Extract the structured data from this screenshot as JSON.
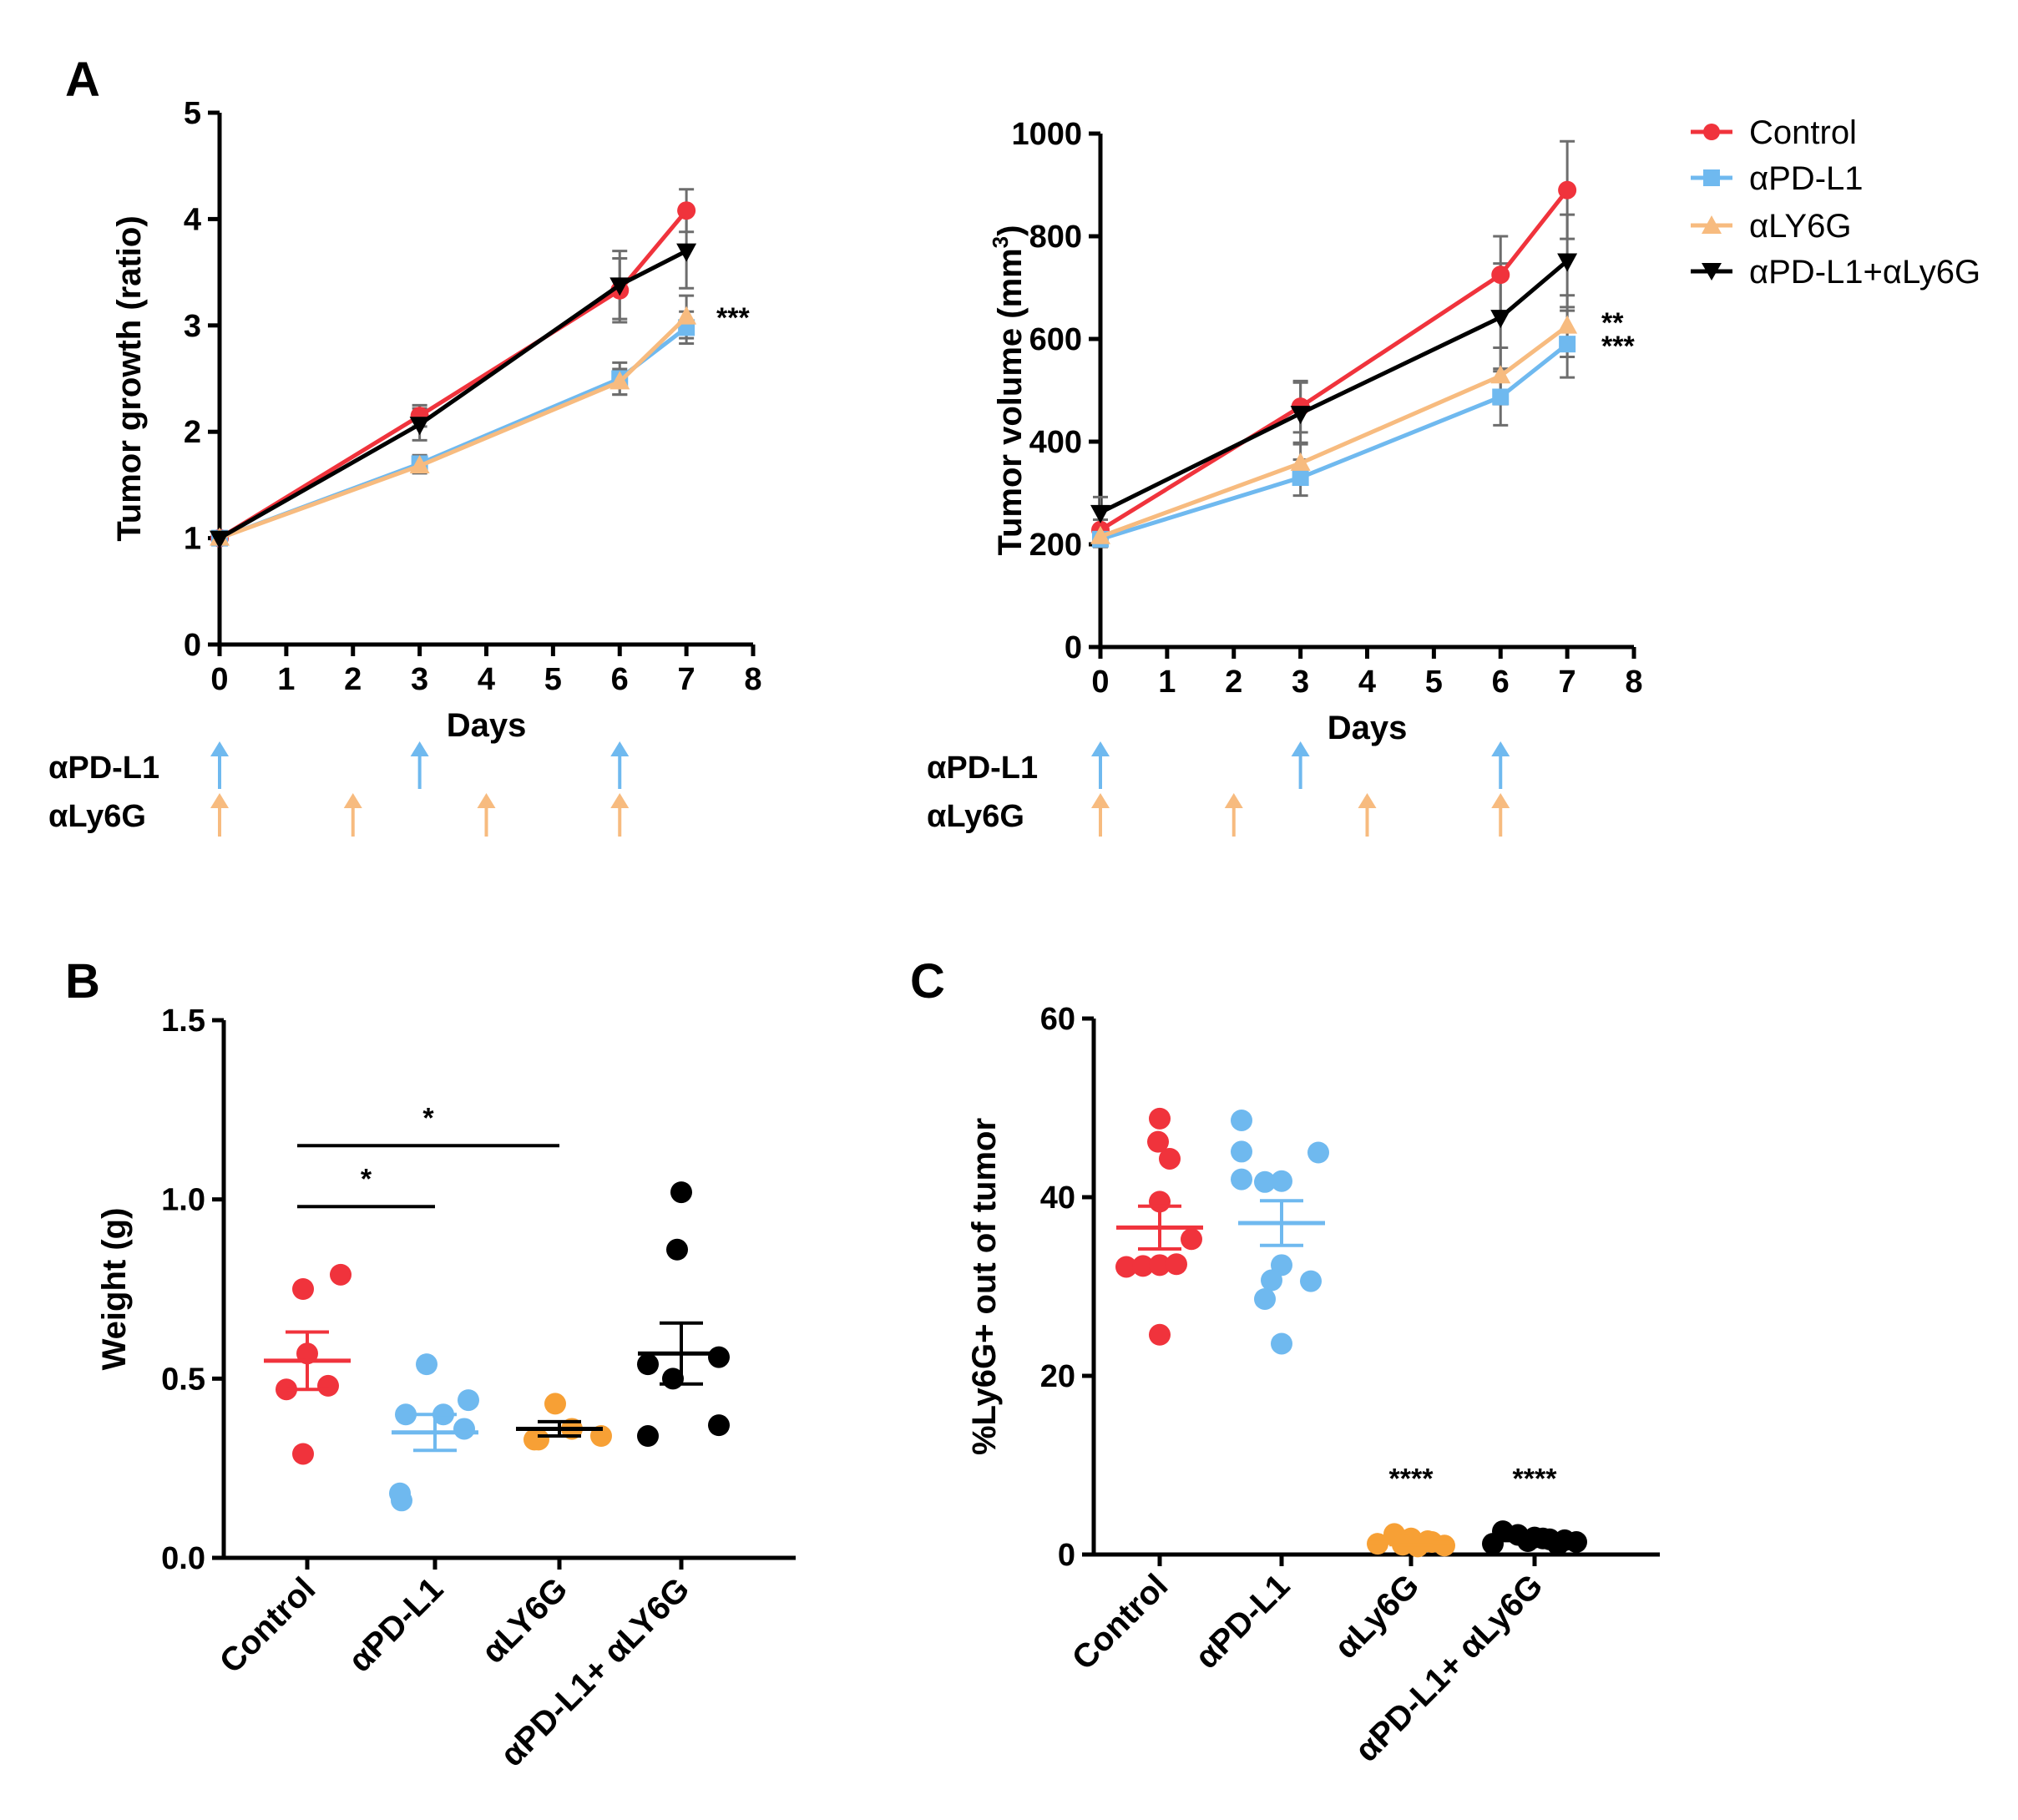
{
  "colors": {
    "control": "#f0333c",
    "apdl1": "#6fb9ef",
    "aly6g_line": "#f7bb7f",
    "aly6g_dot": "#f7a035",
    "combo": "#000000",
    "error": "#6d6d6d"
  },
  "panels": {
    "A": "A",
    "B": "B",
    "C": "C"
  },
  "legend": {
    "items": [
      "Control",
      "αPD-L1",
      "αLY6G",
      "αPD-L1+αLy6G"
    ]
  },
  "schedule": {
    "apdl1_label": "αPD-L1",
    "aly6g_label": "αLy6G",
    "apdl1_days": [
      0,
      3,
      6
    ],
    "aly6g_days": [
      0,
      2,
      4,
      6
    ]
  },
  "chart_data": [
    {
      "id": "A-left",
      "type": "line",
      "title": "",
      "xlabel": "Days",
      "ylabel": "Tumor growth (ratio)",
      "xlim": [
        0,
        8
      ],
      "ylim": [
        0,
        5
      ],
      "xticks": [
        "0",
        "1",
        "2",
        "3",
        "4",
        "5",
        "6",
        "7",
        "8"
      ],
      "yticks": [
        "0",
        "1",
        "2",
        "3",
        "4",
        "5"
      ],
      "x": [
        0,
        3,
        6,
        7
      ],
      "series": [
        {
          "name": "Control",
          "values": [
            1.0,
            2.15,
            3.33,
            4.08
          ],
          "err": [
            0.0,
            0.1,
            0.3,
            0.2
          ]
        },
        {
          "name": "αPD-L1",
          "values": [
            1.0,
            1.7,
            2.5,
            2.98
          ],
          "err": [
            0.0,
            0.08,
            0.15,
            0.15
          ]
        },
        {
          "name": "αLY6G",
          "values": [
            1.0,
            1.68,
            2.47,
            3.08
          ],
          "err": [
            0.0,
            0.07,
            0.12,
            0.2
          ]
        },
        {
          "name": "αPD-L1+αLy6G",
          "values": [
            1.0,
            2.07,
            3.38,
            3.7
          ],
          "err": [
            0.0,
            0.15,
            0.32,
            0.35
          ]
        }
      ],
      "annotations": [
        "***"
      ]
    },
    {
      "id": "A-right",
      "type": "line",
      "title": "",
      "xlabel": "Days",
      "ylabel": "Tumor volume (mm",
      "ylabel_sup": "3",
      "ylabel_end": ")",
      "xlim": [
        0,
        8
      ],
      "ylim": [
        0,
        1000
      ],
      "xticks": [
        "0",
        "1",
        "2",
        "3",
        "4",
        "5",
        "6",
        "7",
        "8"
      ],
      "yticks": [
        "0",
        "200",
        "400",
        "600",
        "800",
        "1000"
      ],
      "x": [
        0,
        3,
        6,
        7
      ],
      "series": [
        {
          "name": "Control",
          "values": [
            228,
            468,
            725,
            890
          ],
          "err": [
            20,
            50,
            75,
            95
          ]
        },
        {
          "name": "αPD-L1",
          "values": [
            210,
            330,
            487,
            590
          ],
          "err": [
            15,
            35,
            55,
            65
          ]
        },
        {
          "name": "αLY6G",
          "values": [
            215,
            358,
            528,
            625
          ],
          "err": [
            15,
            40,
            55,
            60
          ]
        },
        {
          "name": "αPD-L1+αLy6G",
          "values": [
            262,
            455,
            642,
            752
          ],
          "err": [
            30,
            60,
            105,
            90
          ]
        }
      ],
      "annotations": [
        "**",
        "***"
      ]
    },
    {
      "id": "B",
      "type": "scatter",
      "title": "",
      "xlabel": "",
      "ylabel": "Weight (g)",
      "ylim": [
        0,
        1.5
      ],
      "yticks": [
        "0.0",
        "0.5",
        "1.0",
        "1.5"
      ],
      "categories": [
        "Control",
        "αPD-L1",
        "αLY6G",
        "αPD-L1+ αLY6G"
      ],
      "groups": [
        {
          "name": "Control",
          "points": [
            0.75,
            0.79,
            0.57,
            0.48,
            0.47,
            0.29
          ],
          "mean": 0.55,
          "sem": 0.08
        },
        {
          "name": "αPD-L1",
          "points": [
            0.54,
            0.4,
            0.4,
            0.44,
            0.36,
            0.18,
            0.16
          ],
          "mean": 0.35,
          "sem": 0.05
        },
        {
          "name": "αLY6G",
          "points": [
            0.43,
            0.36,
            0.34,
            0.33,
            0.33
          ],
          "mean": 0.36,
          "sem": 0.02
        },
        {
          "name": "αPD-L1+ αLY6G",
          "points": [
            1.02,
            0.86,
            0.56,
            0.54,
            0.5,
            0.34,
            0.37
          ],
          "mean": 0.57,
          "sem": 0.085
        }
      ],
      "significance": [
        {
          "from": 0,
          "to": 1,
          "label": "*",
          "y": 0.98
        },
        {
          "from": 0,
          "to": 2,
          "label": "*",
          "y": 1.15
        }
      ]
    },
    {
      "id": "C",
      "type": "scatter",
      "title": "",
      "xlabel": "",
      "ylabel": "%Ly6G+ out of tumor",
      "ylim": [
        0,
        60
      ],
      "yticks": [
        "0",
        "20",
        "40",
        "60"
      ],
      "categories": [
        "Control",
        "αPD-L1",
        "αLy6G",
        "αPD-L1+ αLy6G"
      ],
      "groups": [
        {
          "name": "Control",
          "points": [
            48.8,
            46.2,
            44.3,
            39.5,
            35.3,
            32.2,
            32.3,
            32.4,
            32.5,
            24.6
          ],
          "mean": 36.6,
          "sem": 2.4
        },
        {
          "name": "αPD-L1",
          "points": [
            48.6,
            45.1,
            45.0,
            42.0,
            41.8,
            41.7,
            32.4,
            30.7,
            30.6,
            28.6,
            23.6
          ],
          "mean": 37.1,
          "sem": 2.5
        },
        {
          "name": "αLy6G",
          "points": [
            2.3,
            1.8,
            1.5,
            1.2,
            1.0,
            0.9,
            1.1,
            1.4
          ],
          "mean": 1.3,
          "sem": 0.2,
          "sig": "****"
        },
        {
          "name": "αPD-L1+ αLy6G",
          "points": [
            2.6,
            2.2,
            1.9,
            1.7,
            1.6,
            1.4,
            1.2,
            1.1,
            1.5,
            1.8
          ],
          "mean": 1.6,
          "sem": 0.2,
          "sig": "****"
        }
      ]
    }
  ]
}
